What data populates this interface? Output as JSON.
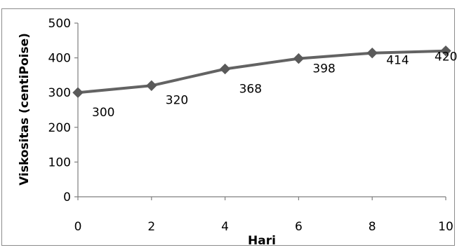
{
  "chart_data": {
    "type": "line",
    "title": "",
    "xlabel": "Hari",
    "ylabel": "Viskositas (centiPoise)",
    "x": [
      0,
      2,
      4,
      6,
      8,
      10
    ],
    "series": [
      {
        "values": [
          300,
          320,
          368,
          398,
          414,
          420
        ],
        "color": "#636363",
        "marker": "diamond"
      }
    ],
    "data_labels": [
      "300",
      "320",
      "368",
      "398",
      "414",
      "420"
    ],
    "xlim": [
      0,
      10
    ],
    "ylim": [
      0,
      500
    ],
    "x_ticks": [
      0,
      2,
      4,
      6,
      8,
      10
    ],
    "y_ticks": [
      0,
      100,
      200,
      300,
      400,
      500
    ],
    "grid": false,
    "legend": "none",
    "colors": {
      "line": "#636363",
      "marker": "#5a5a5a",
      "axis": "#7f7f7f",
      "frame": "#8c8c8c"
    }
  }
}
